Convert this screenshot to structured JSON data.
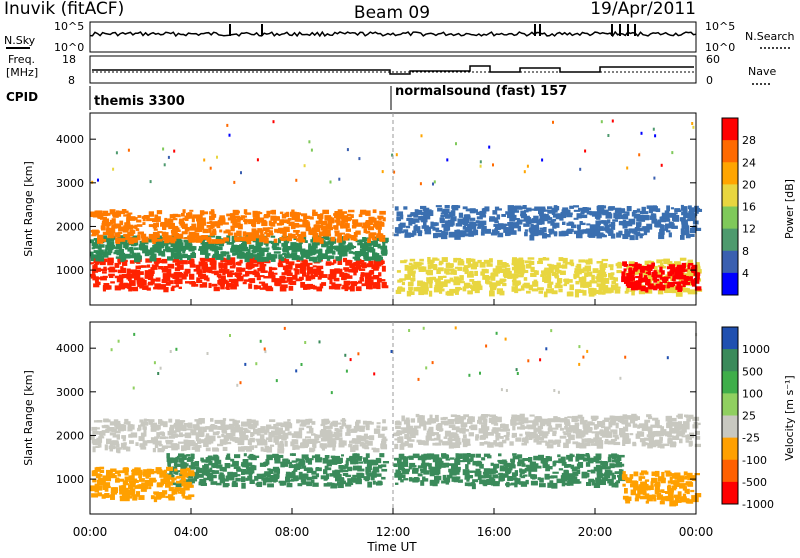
{
  "header": {
    "station": "Inuvik (fitACF)",
    "beam": "Beam 09",
    "date": "19/Apr/2011"
  },
  "sky_panel": {
    "left_label": "N.Sky",
    "right_label": "N.Search",
    "left_ticks": [
      "10^5",
      "10^0"
    ],
    "right_ticks": [
      "10^5",
      "10^0"
    ]
  },
  "freq_panel": {
    "left_label_1": "Freq.",
    "left_label_2": "[MHz]",
    "left_ticks": [
      "18",
      "8"
    ],
    "right_ticks": [
      "60",
      "0"
    ],
    "right_label": "Nave"
  },
  "cpid_panel": {
    "label": "CPID",
    "modes": [
      "themis 3300",
      "normalsound (fast) 157"
    ]
  },
  "chart_data": [
    {
      "type": "heatmap",
      "name": "power-panel",
      "ylabel": "Slant Range [km]",
      "yticks": [
        "1000",
        "2000",
        "3000",
        "4000"
      ],
      "ylim": [
        200,
        4600
      ],
      "xlim_hours": [
        0,
        24
      ],
      "colorbar_label": "Power [dB]",
      "colorbar_ticks": [
        "28",
        "24",
        "20",
        "16",
        "12",
        "8",
        "4"
      ],
      "colorbar_colors": [
        "#ff0000",
        "#ff6a00",
        "#ffa500",
        "#e8d640",
        "#7fc95a",
        "#4e9a6e",
        "#3a5fb0",
        "#0000ff"
      ],
      "scatter_bands": [
        {
          "start_h": 0.0,
          "end_h": 11.6,
          "range_km": [
            600,
            1300
          ],
          "color": "#ff2200"
        },
        {
          "start_h": 0.0,
          "end_h": 11.6,
          "range_km": [
            1300,
            1800
          ],
          "color": "#2e8b57"
        },
        {
          "start_h": 0.0,
          "end_h": 11.6,
          "range_km": [
            1700,
            2400
          ],
          "color": "#ff7a00"
        },
        {
          "start_h": 12.0,
          "end_h": 24.0,
          "range_km": [
            500,
            1300
          ],
          "color": "#e8d640"
        },
        {
          "start_h": 12.0,
          "end_h": 24.0,
          "range_km": [
            1800,
            2500
          ],
          "color": "#3a6fb0"
        },
        {
          "start_h": 21.0,
          "end_h": 24.0,
          "range_km": [
            600,
            1200
          ],
          "color": "#ff0000"
        }
      ]
    },
    {
      "type": "heatmap",
      "name": "velocity-panel",
      "ylabel": "Slant Range [km]",
      "yticks": [
        "1000",
        "2000",
        "3000",
        "4000"
      ],
      "ylim": [
        200,
        4600
      ],
      "xlim_hours": [
        0,
        24
      ],
      "colorbar_label": "Velocity [m s⁻¹]",
      "colorbar_ticks": [
        "1000",
        "500",
        "100",
        "25",
        "-25",
        "-100",
        "-500",
        "-1000"
      ],
      "colorbar_colors": [
        "#2050b0",
        "#3a8a5a",
        "#3fae4a",
        "#90d060",
        "#c8c8c0",
        "#ffa000",
        "#ff6000",
        "#ff0000"
      ],
      "scatter_bands": [
        {
          "start_h": 0.0,
          "end_h": 11.6,
          "range_km": [
            1700,
            2400
          ],
          "color": "#c8c8c0"
        },
        {
          "start_h": 3.0,
          "end_h": 11.6,
          "range_km": [
            900,
            1600
          ],
          "color": "#3a8a5a"
        },
        {
          "start_h": 0.0,
          "end_h": 4.0,
          "range_km": [
            600,
            1300
          ],
          "color": "#ffa000"
        },
        {
          "start_h": 12.0,
          "end_h": 24.0,
          "range_km": [
            1800,
            2500
          ],
          "color": "#c8c8c0"
        },
        {
          "start_h": 12.0,
          "end_h": 21.0,
          "range_km": [
            900,
            1600
          ],
          "color": "#3a8a5a"
        },
        {
          "start_h": 21.0,
          "end_h": 24.0,
          "range_km": [
            500,
            1200
          ],
          "color": "#ffa000"
        }
      ]
    }
  ],
  "xaxis": {
    "ticks": [
      "00:00",
      "04:00",
      "08:00",
      "12:00",
      "16:00",
      "20:00",
      "00:00"
    ],
    "label": "Time UT"
  }
}
